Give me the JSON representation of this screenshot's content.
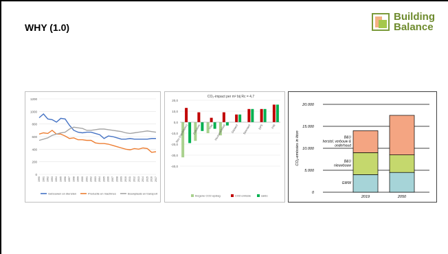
{
  "slide": {
    "title": "WHY (1.0)",
    "logo": {
      "line1": "Building",
      "line2": "Balance"
    }
  },
  "chart_data": [
    {
      "type": "line",
      "x": [
        "1990",
        "1991",
        "1992",
        "1993",
        "1994",
        "1995",
        "1996",
        "1997",
        "1998",
        "1999",
        "2000",
        "2001",
        "2002",
        "2003",
        "2004",
        "2005",
        "2006",
        "2007",
        "2008",
        "2009",
        "2010",
        "2011",
        "2012",
        "2013",
        "2014",
        "2015",
        "2016",
        "2017"
      ],
      "ylim": [
        0,
        1200
      ],
      "yticks": [
        0,
        200,
        400,
        600,
        800,
        1000,
        1200
      ],
      "series": [
        {
          "name": "Gebouwen en diensten",
          "color": "#4472c4",
          "values": [
            900,
            960,
            880,
            870,
            830,
            890,
            880,
            780,
            700,
            670,
            660,
            670,
            670,
            650,
            630,
            570,
            610,
            600,
            580,
            560,
            560,
            570,
            560,
            560,
            560,
            560,
            570,
            570
          ]
        },
        {
          "name": "Productie en machines",
          "color": "#ed7d31",
          "values": [
            640,
            660,
            650,
            700,
            640,
            640,
            610,
            570,
            580,
            550,
            550,
            540,
            540,
            500,
            490,
            490,
            480,
            460,
            440,
            420,
            400,
            390,
            410,
            400,
            420,
            410,
            350,
            360
          ]
        },
        {
          "name": "Bouwplaats en transport",
          "color": "#a5a5a5",
          "values": [
            540,
            560,
            580,
            620,
            640,
            660,
            670,
            720,
            750,
            740,
            730,
            700,
            700,
            710,
            720,
            720,
            710,
            700,
            690,
            680,
            660,
            650,
            660,
            670,
            680,
            690,
            680,
            670
          ]
        }
      ]
    },
    {
      "type": "bar",
      "title": "CO₂-impact per m² bij Rc = 4,7",
      "categories": [
        "Stro (ingeblazen)",
        "Cellulose",
        "Vlas",
        "Houtvezelplaat",
        "Glaswol",
        "Steenwol",
        "EPS",
        "PIR"
      ],
      "ylim": [
        -40,
        20
      ],
      "yticks": [
        -40,
        -30,
        -20,
        -10,
        0,
        10,
        20
      ],
      "series": [
        {
          "name": "biogene CO2-opslag",
          "color": "#a9d18e",
          "values": [
            -32,
            -17,
            -10,
            -12,
            0,
            0,
            0,
            0
          ]
        },
        {
          "name": "CO2-emissie",
          "color": "#c00000",
          "values": [
            13,
            9,
            4,
            9,
            7,
            12,
            12,
            16
          ]
        },
        {
          "name": "saldo",
          "color": "#00b050",
          "values": [
            -19,
            -8,
            -6,
            -3,
            7,
            12,
            12,
            16
          ]
        }
      ]
    },
    {
      "type": "bar",
      "stacked": true,
      "ylabel": "CO₂-emissies in kton",
      "categories": [
        "2019",
        "2050"
      ],
      "ylim": [
        0,
        20000
      ],
      "yticks": [
        "0",
        "5.000",
        "10.000",
        "15.000",
        "20.000"
      ],
      "series": [
        {
          "name": "GWW",
          "color": "#a6d4d8",
          "values": [
            4000,
            4500
          ]
        },
        {
          "name": "B&U nieuwbouw",
          "color": "#c5d86d",
          "values": [
            5000,
            4000
          ]
        },
        {
          "name": "B&U herstel, verbouw & onderhoud",
          "color": "#f4a582",
          "values": [
            5000,
            9000
          ]
        }
      ]
    }
  ]
}
